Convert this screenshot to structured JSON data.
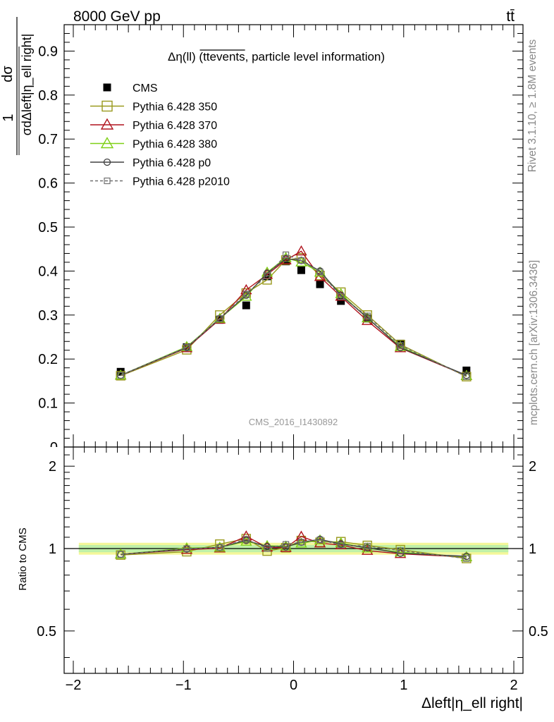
{
  "header": {
    "energy_label": "8000 GeV pp",
    "process_label": "tt̄"
  },
  "side_labels": {
    "rivet": "Rivet 3.1.10, ≥ 1.8M events",
    "mcplots": "mcplots.cern.ch [arXiv:1306.3436]"
  },
  "main_plot": {
    "title_prefix": "Δη(ll) (tt",
    "title_overline": "events",
    "title_suffix": ", particle level information)",
    "ylabel_one": "1",
    "ylabel_num": "dσ",
    "ylabel_den": "σdΔleft|η_ell right|",
    "watermark": "CMS_2016_I1430892"
  },
  "ratio_plot": {
    "ylabel": "Ratio to CMS"
  },
  "xlabel": "Δleft|η_ell right|",
  "legend": [
    {
      "name": "CMS",
      "color": "#000000",
      "marker": "filled-square",
      "line": "none"
    },
    {
      "name": "Pythia 6.428 350",
      "color": "#9a9a1e",
      "marker": "open-square",
      "line": "solid"
    },
    {
      "name": "Pythia 6.428 370",
      "color": "#b0141e",
      "marker": "open-triangle",
      "line": "solid"
    },
    {
      "name": "Pythia 6.428 380",
      "color": "#7fd016",
      "marker": "open-triangle",
      "line": "solid"
    },
    {
      "name": "Pythia 6.428 p0",
      "color": "#404040",
      "marker": "open-circle",
      "line": "solid"
    },
    {
      "name": "Pythia 6.428 p2010",
      "color": "#707070",
      "marker": "open-square-small",
      "line": "dashed"
    }
  ],
  "chart_data": [
    {
      "type": "line",
      "title": "Δη(ll) (tt events, particle level information)",
      "xlabel": "Δleft|η_ell right|",
      "ylabel": "1/σ dσ/dΔleft|η_ell right|",
      "xlim": [
        -2.1,
        2.1
      ],
      "ylim": [
        0,
        0.96
      ],
      "xticks": [
        "−2",
        "−1",
        "0",
        "1",
        "2"
      ],
      "yticks": [
        "0",
        "0.1",
        "0.2",
        "0.3",
        "0.4",
        "0.5",
        "0.6",
        "0.7",
        "0.8",
        "0.9"
      ],
      "x": [
        -1.57,
        -0.97,
        -0.67,
        -0.43,
        -0.24,
        -0.07,
        0.07,
        0.24,
        0.43,
        0.67,
        0.97,
        1.57
      ],
      "series": [
        {
          "name": "CMS",
          "values": [
            0.171,
            0.227,
            0.289,
            0.322,
            0.388,
            0.422,
            0.402,
            0.37,
            0.332,
            0.292,
            0.235,
            0.174
          ]
        },
        {
          "name": "Pythia 6.428 350",
          "values": [
            0.162,
            0.221,
            0.3,
            0.35,
            0.38,
            0.425,
            0.43,
            0.39,
            0.352,
            0.3,
            0.233,
            0.16
          ]
        },
        {
          "name": "Pythia 6.428 370",
          "values": [
            0.163,
            0.225,
            0.29,
            0.357,
            0.392,
            0.425,
            0.445,
            0.387,
            0.342,
            0.287,
            0.225,
            0.162
          ]
        },
        {
          "name": "Pythia 6.428 380",
          "values": [
            0.163,
            0.228,
            0.292,
            0.342,
            0.397,
            0.43,
            0.42,
            0.397,
            0.348,
            0.293,
            0.228,
            0.162
          ]
        },
        {
          "name": "Pythia 6.428 p0",
          "values": [
            0.163,
            0.226,
            0.292,
            0.345,
            0.395,
            0.428,
            0.424,
            0.4,
            0.345,
            0.294,
            0.226,
            0.163
          ]
        },
        {
          "name": "Pythia 6.428 p2010",
          "values": [
            0.163,
            0.227,
            0.292,
            0.348,
            0.389,
            0.437,
            0.424,
            0.398,
            0.342,
            0.298,
            0.231,
            0.16
          ]
        }
      ]
    },
    {
      "type": "line",
      "ylabel": "Ratio to CMS",
      "xlabel": "Δleft|η_ell right|",
      "xlim": [
        -2.1,
        2.1
      ],
      "ylim": [
        0.35,
        2.35
      ],
      "yscale": "log",
      "yticks": [
        "0.5",
        "1",
        "2"
      ],
      "band": {
        "inner": [
          0.97,
          1.03
        ],
        "outer": [
          0.95,
          1.05
        ]
      },
      "x": [
        -1.57,
        -0.97,
        -0.67,
        -0.43,
        -0.24,
        -0.07,
        0.07,
        0.24,
        0.43,
        0.67,
        0.97,
        1.57
      ],
      "series": [
        {
          "name": "Pythia 6.428 350",
          "values": [
            0.947,
            0.974,
            1.038,
            1.087,
            0.979,
            1.007,
            1.07,
            1.054,
            1.06,
            1.027,
            0.991,
            0.92
          ]
        },
        {
          "name": "Pythia 6.428 370",
          "values": [
            0.953,
            0.991,
            1.003,
            1.109,
            1.01,
            1.007,
            1.107,
            1.046,
            1.03,
            0.983,
            0.957,
            0.931
          ]
        },
        {
          "name": "Pythia 6.428 380",
          "values": [
            0.953,
            1.004,
            1.01,
            1.062,
            1.023,
            1.019,
            1.045,
            1.073,
            1.048,
            1.003,
            0.97,
            0.931
          ]
        },
        {
          "name": "Pythia 6.428 p0",
          "values": [
            0.953,
            0.996,
            1.01,
            1.071,
            1.018,
            1.014,
            1.055,
            1.081,
            1.039,
            1.007,
            0.962,
            0.937
          ]
        },
        {
          "name": "Pythia 6.428 p2010",
          "values": [
            0.953,
            1.0,
            1.01,
            1.081,
            1.003,
            1.036,
            1.055,
            1.076,
            1.03,
            1.021,
            0.983,
            0.92
          ]
        }
      ]
    }
  ]
}
